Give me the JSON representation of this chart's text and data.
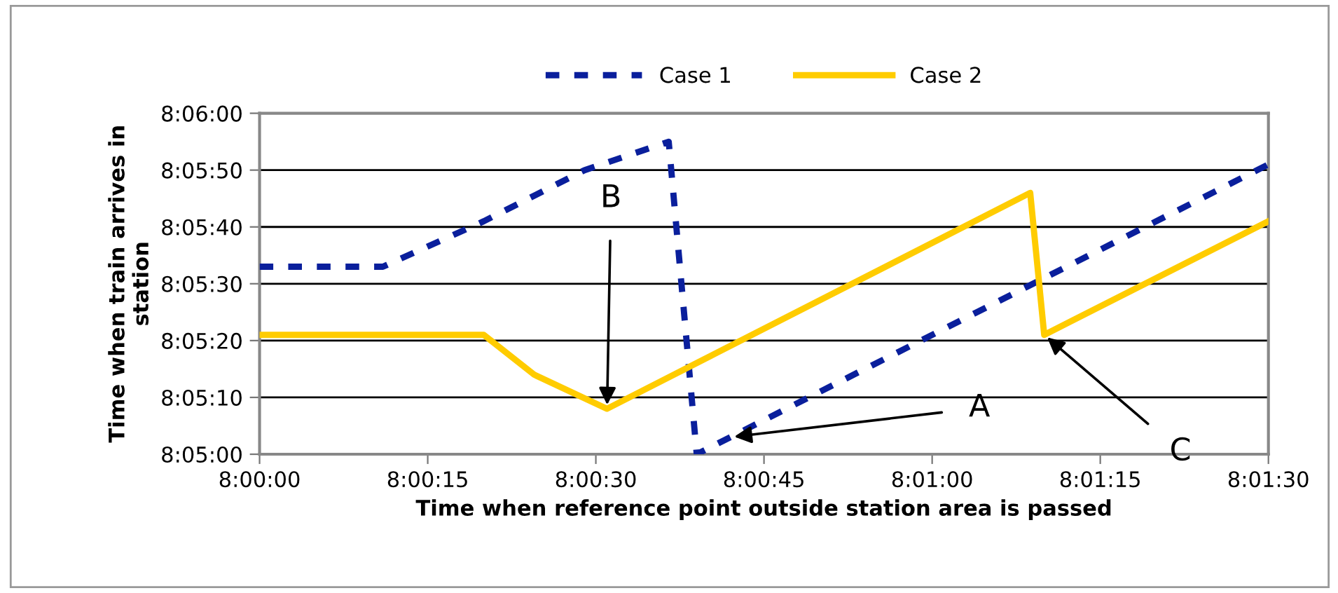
{
  "chart_data": {
    "type": "line",
    "xlabel": "Time when reference point outside station area is passed",
    "ylabel": "Time when train arrives in\nstation",
    "series": [
      {
        "name": "Case 1",
        "color": "#0a1f9c",
        "line_style": "dashed",
        "x": [
          8.0,
          8.003056,
          8.005556,
          8.008056,
          8.010139,
          8.010833,
          8.025
        ],
        "values": [
          8.0925,
          8.0925,
          8.094722,
          8.097222,
          8.098611,
          8.083333,
          8.0975
        ]
      },
      {
        "name": "Case 2",
        "color": "#ffcc00",
        "line_style": "solid",
        "x": [
          8.0,
          8.005556,
          8.006806,
          8.008611,
          8.019097,
          8.019444,
          8.025
        ],
        "values": [
          8.089167,
          8.089167,
          8.087222,
          8.085556,
          8.096111,
          8.089167,
          8.094722
        ]
      }
    ],
    "xlim": [
      8.0,
      8.025
    ],
    "xticks": [
      {
        "value": 8.0,
        "label": "8:00:00"
      },
      {
        "value": 8.004167,
        "label": "8:00:15"
      },
      {
        "value": 8.008333,
        "label": "8:00:30"
      },
      {
        "value": 8.0125,
        "label": "8:00:45"
      },
      {
        "value": 8.016667,
        "label": "8:01:00"
      },
      {
        "value": 8.020833,
        "label": "8:01:15"
      },
      {
        "value": 8.025,
        "label": "8:01:30"
      }
    ],
    "ylim": [
      8.083333,
      8.1
    ],
    "yticks": [
      {
        "value": 8.083333,
        "label": "8:05:00"
      },
      {
        "value": 8.086111,
        "label": "8:05:10"
      },
      {
        "value": 8.088889,
        "label": "8:05:20"
      },
      {
        "value": 8.091667,
        "label": "8:05:30"
      },
      {
        "value": 8.094444,
        "label": "8:05:40"
      },
      {
        "value": 8.097222,
        "label": "8:05:50"
      },
      {
        "value": 8.1,
        "label": "8:06:00"
      }
    ],
    "grid": "y",
    "legend": "top",
    "marker": "none",
    "annotations": [
      {
        "text": "B",
        "x": 8.008611,
        "y": 8.085556
      },
      {
        "text": "A",
        "x": 8.011667,
        "y": 8.084167
      },
      {
        "text": "C",
        "x": 8.019444,
        "y": 8.089167
      }
    ]
  }
}
